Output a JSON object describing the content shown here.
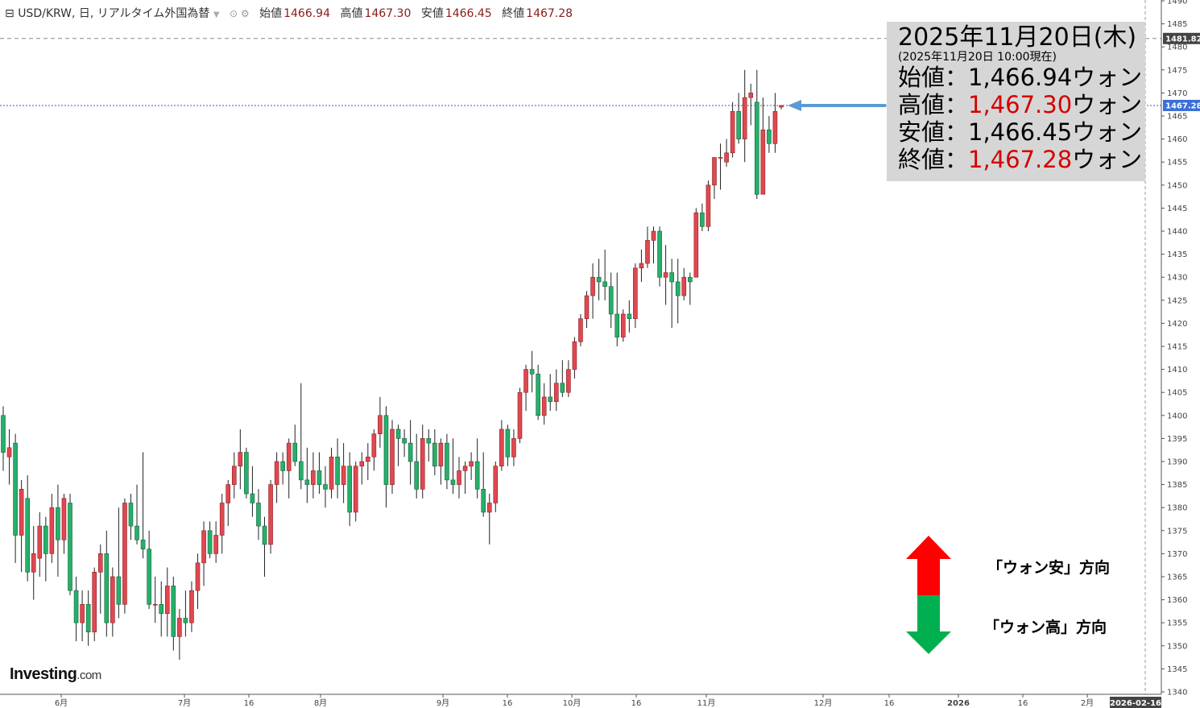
{
  "header": {
    "symbol": "USD/KRW, 日, リアルタイム外国為替",
    "open_label": "始値",
    "open_value": "1466.94",
    "high_label": "高値",
    "high_value": "1467.30",
    "low_label": "安値",
    "low_value": "1466.45",
    "close_label": "終値",
    "close_value": "1467.28"
  },
  "info_box": {
    "date": "2025年11月20日(木)",
    "as_of": "(2025年11月20日 10:00現在)",
    "open_label": "始値：",
    "open_value": "1,466.94",
    "open_unit": "ウォン",
    "high_label": "高値：",
    "high_value": "1,467.30",
    "high_unit": "ウォン",
    "low_label": "安値：",
    "low_value": "1,466.45",
    "low_unit": "ウォン",
    "close_label": "終値：",
    "close_value": "1,467.28",
    "close_unit": "ウォン"
  },
  "legend": {
    "up_text": "「ウォン安」方向",
    "down_text": "「ウォン高」方向",
    "up_color": "#ff0000",
    "down_color": "#00b050"
  },
  "branding": {
    "logo": "Investing",
    "logo_suffix": ".com"
  },
  "colors": {
    "bull": "#e0484f",
    "bear": "#26b06a",
    "price_line": "#3a55d9",
    "arrow": "#5b9bd5"
  },
  "chart_data": {
    "type": "candlestick",
    "y_axis": {
      "range": [
        1340,
        1490
      ],
      "ticks": [
        1340,
        1345,
        1350,
        1355,
        1360,
        1365,
        1370,
        1375,
        1380,
        1385,
        1390,
        1395,
        1400,
        1405,
        1410,
        1415,
        1420,
        1425,
        1430,
        1435,
        1440,
        1445,
        1450,
        1455,
        1460,
        1465,
        1470,
        1475,
        1480,
        1485,
        1490
      ],
      "current_price": "1467.28",
      "high_marker": "1481.82"
    },
    "x_axis": {
      "labels": [
        "6月",
        "7月",
        "16",
        "8月",
        "9月",
        "16",
        "10月",
        "16",
        "11月",
        "12月",
        "16",
        "2026",
        "16",
        "2月"
      ],
      "cursor_label": "2026-02-16"
    },
    "candles": [
      {
        "o": 1400,
        "h": 1402,
        "l": 1388,
        "c": 1392
      },
      {
        "o": 1391,
        "h": 1397,
        "l": 1385,
        "c": 1393
      },
      {
        "o": 1394,
        "h": 1396,
        "l": 1368,
        "c": 1374
      },
      {
        "o": 1374,
        "h": 1386,
        "l": 1366,
        "c": 1384
      },
      {
        "o": 1382,
        "h": 1387,
        "l": 1364,
        "c": 1366
      },
      {
        "o": 1366,
        "h": 1376,
        "l": 1360,
        "c": 1370
      },
      {
        "o": 1369,
        "h": 1379,
        "l": 1365,
        "c": 1376
      },
      {
        "o": 1376,
        "h": 1378,
        "l": 1364,
        "c": 1370
      },
      {
        "o": 1370,
        "h": 1383,
        "l": 1368,
        "c": 1380
      },
      {
        "o": 1380,
        "h": 1385,
        "l": 1365,
        "c": 1373
      },
      {
        "o": 1373,
        "h": 1383,
        "l": 1370,
        "c": 1382
      },
      {
        "o": 1381,
        "h": 1383,
        "l": 1361,
        "c": 1362
      },
      {
        "o": 1362,
        "h": 1365,
        "l": 1351,
        "c": 1355
      },
      {
        "o": 1355,
        "h": 1362,
        "l": 1351,
        "c": 1359
      },
      {
        "o": 1359,
        "h": 1362,
        "l": 1350,
        "c": 1353
      },
      {
        "o": 1353,
        "h": 1367,
        "l": 1351,
        "c": 1366
      },
      {
        "o": 1366,
        "h": 1372,
        "l": 1357,
        "c": 1370
      },
      {
        "o": 1370,
        "h": 1375,
        "l": 1352,
        "c": 1355
      },
      {
        "o": 1355,
        "h": 1367,
        "l": 1352,
        "c": 1365
      },
      {
        "o": 1365,
        "h": 1380,
        "l": 1356,
        "c": 1359
      },
      {
        "o": 1359,
        "h": 1382,
        "l": 1357,
        "c": 1381
      },
      {
        "o": 1381,
        "h": 1383,
        "l": 1373,
        "c": 1376
      },
      {
        "o": 1376,
        "h": 1385,
        "l": 1372,
        "c": 1373
      },
      {
        "o": 1373,
        "h": 1392,
        "l": 1369,
        "c": 1371
      },
      {
        "o": 1371,
        "h": 1375,
        "l": 1358,
        "c": 1359
      },
      {
        "o": 1359,
        "h": 1365,
        "l": 1355,
        "c": 1359
      },
      {
        "o": 1359,
        "h": 1364,
        "l": 1352,
        "c": 1357
      },
      {
        "o": 1357,
        "h": 1367,
        "l": 1352,
        "c": 1363
      },
      {
        "o": 1363,
        "h": 1365,
        "l": 1349,
        "c": 1352
      },
      {
        "o": 1352,
        "h": 1358,
        "l": 1347,
        "c": 1356
      },
      {
        "o": 1356,
        "h": 1362,
        "l": 1352,
        "c": 1355
      },
      {
        "o": 1355,
        "h": 1364,
        "l": 1353,
        "c": 1362
      },
      {
        "o": 1362,
        "h": 1370,
        "l": 1358,
        "c": 1368
      },
      {
        "o": 1368,
        "h": 1377,
        "l": 1363,
        "c": 1375
      },
      {
        "o": 1375,
        "h": 1377,
        "l": 1369,
        "c": 1370
      },
      {
        "o": 1370,
        "h": 1377,
        "l": 1368,
        "c": 1374
      },
      {
        "o": 1374,
        "h": 1383,
        "l": 1370,
        "c": 1381
      },
      {
        "o": 1381,
        "h": 1386,
        "l": 1376,
        "c": 1385
      },
      {
        "o": 1385,
        "h": 1392,
        "l": 1382,
        "c": 1389
      },
      {
        "o": 1389,
        "h": 1397,
        "l": 1384,
        "c": 1392
      },
      {
        "o": 1392,
        "h": 1393,
        "l": 1382,
        "c": 1383
      },
      {
        "o": 1383,
        "h": 1389,
        "l": 1378,
        "c": 1381
      },
      {
        "o": 1381,
        "h": 1384,
        "l": 1373,
        "c": 1376
      },
      {
        "o": 1376,
        "h": 1378,
        "l": 1365,
        "c": 1372
      },
      {
        "o": 1372,
        "h": 1386,
        "l": 1370,
        "c": 1385
      },
      {
        "o": 1385,
        "h": 1392,
        "l": 1381,
        "c": 1390
      },
      {
        "o": 1390,
        "h": 1392,
        "l": 1385,
        "c": 1388
      },
      {
        "o": 1388,
        "h": 1395,
        "l": 1382,
        "c": 1394
      },
      {
        "o": 1394,
        "h": 1398,
        "l": 1389,
        "c": 1390
      },
      {
        "o": 1390,
        "h": 1407,
        "l": 1384,
        "c": 1386
      },
      {
        "o": 1386,
        "h": 1393,
        "l": 1381,
        "c": 1385
      },
      {
        "o": 1385,
        "h": 1392,
        "l": 1382,
        "c": 1388
      },
      {
        "o": 1388,
        "h": 1392,
        "l": 1383,
        "c": 1385
      },
      {
        "o": 1385,
        "h": 1389,
        "l": 1380,
        "c": 1384
      },
      {
        "o": 1384,
        "h": 1393,
        "l": 1382,
        "c": 1391
      },
      {
        "o": 1391,
        "h": 1395,
        "l": 1382,
        "c": 1385
      },
      {
        "o": 1385,
        "h": 1394,
        "l": 1381,
        "c": 1389
      },
      {
        "o": 1389,
        "h": 1392,
        "l": 1376,
        "c": 1379
      },
      {
        "o": 1379,
        "h": 1390,
        "l": 1377,
        "c": 1389
      },
      {
        "o": 1389,
        "h": 1392,
        "l": 1385,
        "c": 1390
      },
      {
        "o": 1390,
        "h": 1394,
        "l": 1386,
        "c": 1391
      },
      {
        "o": 1391,
        "h": 1397,
        "l": 1388,
        "c": 1396
      },
      {
        "o": 1396,
        "h": 1404,
        "l": 1393,
        "c": 1400
      },
      {
        "o": 1400,
        "h": 1402,
        "l": 1380,
        "c": 1385
      },
      {
        "o": 1385,
        "h": 1399,
        "l": 1383,
        "c": 1397
      },
      {
        "o": 1397,
        "h": 1398,
        "l": 1389,
        "c": 1395
      },
      {
        "o": 1395,
        "h": 1397,
        "l": 1391,
        "c": 1394
      },
      {
        "o": 1394,
        "h": 1399,
        "l": 1385,
        "c": 1390
      },
      {
        "o": 1390,
        "h": 1396,
        "l": 1382,
        "c": 1384
      },
      {
        "o": 1384,
        "h": 1398,
        "l": 1382,
        "c": 1395
      },
      {
        "o": 1395,
        "h": 1397,
        "l": 1390,
        "c": 1394
      },
      {
        "o": 1394,
        "h": 1397,
        "l": 1387,
        "c": 1389
      },
      {
        "o": 1389,
        "h": 1395,
        "l": 1385,
        "c": 1394
      },
      {
        "o": 1394,
        "h": 1396,
        "l": 1384,
        "c": 1386
      },
      {
        "o": 1386,
        "h": 1395,
        "l": 1383,
        "c": 1385
      },
      {
        "o": 1385,
        "h": 1391,
        "l": 1382,
        "c": 1388
      },
      {
        "o": 1388,
        "h": 1390,
        "l": 1383,
        "c": 1389
      },
      {
        "o": 1389,
        "h": 1392,
        "l": 1386,
        "c": 1390
      },
      {
        "o": 1390,
        "h": 1395,
        "l": 1382,
        "c": 1384
      },
      {
        "o": 1384,
        "h": 1392,
        "l": 1378,
        "c": 1379
      },
      {
        "o": 1379,
        "h": 1383,
        "l": 1372,
        "c": 1381
      },
      {
        "o": 1381,
        "h": 1390,
        "l": 1379,
        "c": 1389
      },
      {
        "o": 1389,
        "h": 1399,
        "l": 1388,
        "c": 1397
      },
      {
        "o": 1397,
        "h": 1398,
        "l": 1389,
        "c": 1391
      },
      {
        "o": 1391,
        "h": 1397,
        "l": 1389,
        "c": 1395
      },
      {
        "o": 1395,
        "h": 1406,
        "l": 1394,
        "c": 1405
      },
      {
        "o": 1405,
        "h": 1411,
        "l": 1401,
        "c": 1410
      },
      {
        "o": 1410,
        "h": 1414,
        "l": 1405,
        "c": 1409
      },
      {
        "o": 1409,
        "h": 1411,
        "l": 1399,
        "c": 1400
      },
      {
        "o": 1400,
        "h": 1407,
        "l": 1398,
        "c": 1404
      },
      {
        "o": 1404,
        "h": 1409,
        "l": 1401,
        "c": 1403
      },
      {
        "o": 1403,
        "h": 1410,
        "l": 1401,
        "c": 1407
      },
      {
        "o": 1407,
        "h": 1412,
        "l": 1404,
        "c": 1405
      },
      {
        "o": 1405,
        "h": 1412,
        "l": 1404,
        "c": 1410
      },
      {
        "o": 1410,
        "h": 1417,
        "l": 1408,
        "c": 1416
      },
      {
        "o": 1416,
        "h": 1422,
        "l": 1415,
        "c": 1421
      },
      {
        "o": 1421,
        "h": 1427,
        "l": 1419,
        "c": 1426
      },
      {
        "o": 1426,
        "h": 1433,
        "l": 1421,
        "c": 1430
      },
      {
        "o": 1430,
        "h": 1434,
        "l": 1425,
        "c": 1429
      },
      {
        "o": 1429,
        "h": 1436,
        "l": 1425,
        "c": 1428
      },
      {
        "o": 1428,
        "h": 1431,
        "l": 1419,
        "c": 1422
      },
      {
        "o": 1422,
        "h": 1431,
        "l": 1415,
        "c": 1417
      },
      {
        "o": 1417,
        "h": 1423,
        "l": 1416,
        "c": 1422
      },
      {
        "o": 1422,
        "h": 1425,
        "l": 1418,
        "c": 1421
      },
      {
        "o": 1421,
        "h": 1433,
        "l": 1419,
        "c": 1432
      },
      {
        "o": 1432,
        "h": 1436,
        "l": 1429,
        "c": 1433
      },
      {
        "o": 1433,
        "h": 1441,
        "l": 1432,
        "c": 1438
      },
      {
        "o": 1438,
        "h": 1441,
        "l": 1433,
        "c": 1440
      },
      {
        "o": 1440,
        "h": 1441,
        "l": 1428,
        "c": 1430
      },
      {
        "o": 1430,
        "h": 1437,
        "l": 1424,
        "c": 1431
      },
      {
        "o": 1431,
        "h": 1434,
        "l": 1419,
        "c": 1429
      },
      {
        "o": 1429,
        "h": 1434,
        "l": 1420,
        "c": 1426
      },
      {
        "o": 1426,
        "h": 1432,
        "l": 1425,
        "c": 1430
      },
      {
        "o": 1430,
        "h": 1431,
        "l": 1424,
        "c": 1429
      },
      {
        "o": 1430,
        "h": 1445,
        "l": 1430,
        "c": 1444
      },
      {
        "o": 1444,
        "h": 1446,
        "l": 1440,
        "c": 1441
      },
      {
        "o": 1441,
        "h": 1451,
        "l": 1440,
        "c": 1450
      },
      {
        "o": 1450,
        "h": 1455,
        "l": 1447,
        "c": 1456
      },
      {
        "o": 1456,
        "h": 1459,
        "l": 1449,
        "c": 1456
      },
      {
        "o": 1455,
        "h": 1460,
        "l": 1454,
        "c": 1457
      },
      {
        "o": 1457,
        "h": 1468,
        "l": 1456,
        "c": 1466
      },
      {
        "o": 1466,
        "h": 1470,
        "l": 1459,
        "c": 1460
      },
      {
        "o": 1460,
        "h": 1475,
        "l": 1455,
        "c": 1469
      },
      {
        "o": 1469,
        "h": 1472,
        "l": 1463,
        "c": 1470
      },
      {
        "o": 1468,
        "h": 1475,
        "l": 1447,
        "c": 1448
      },
      {
        "o": 1448,
        "h": 1469,
        "l": 1448,
        "c": 1462
      },
      {
        "o": 1462,
        "h": 1465,
        "l": 1457,
        "c": 1459
      },
      {
        "o": 1459,
        "h": 1470,
        "l": 1457,
        "c": 1466
      },
      {
        "o": 1466.94,
        "h": 1467.3,
        "l": 1466.45,
        "c": 1467.28
      }
    ]
  }
}
